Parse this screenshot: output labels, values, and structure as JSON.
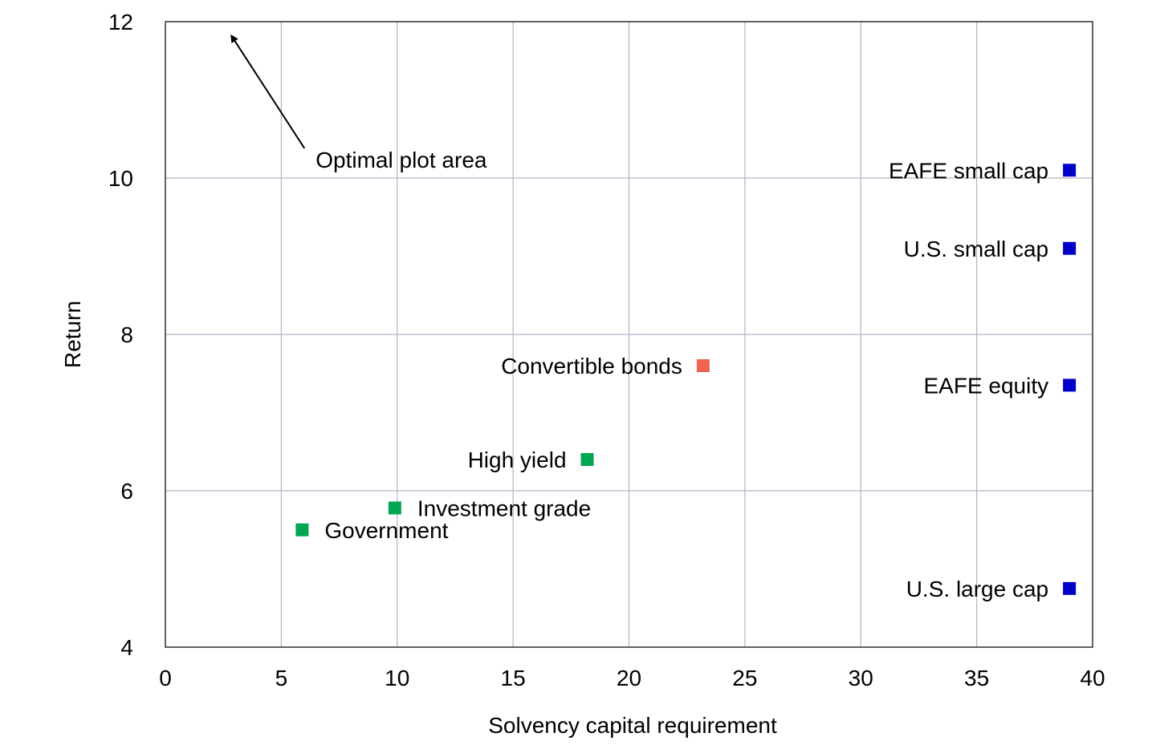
{
  "chart_data": {
    "type": "scatter",
    "title": "",
    "xlabel": "Solvency capital requirement",
    "ylabel": "Return",
    "xlim": [
      0,
      40
    ],
    "ylim": [
      4,
      12
    ],
    "xticks": [
      0,
      5,
      10,
      15,
      20,
      25,
      30,
      35,
      40
    ],
    "yticks": [
      4,
      6,
      8,
      10,
      12
    ],
    "grid": true,
    "points": [
      {
        "label": "EAFE small cap",
        "x": 39,
        "y": 10.1,
        "color": "#0000c8",
        "label_side": "left"
      },
      {
        "label": "U.S. small cap",
        "x": 39,
        "y": 9.1,
        "color": "#0000c8",
        "label_side": "left"
      },
      {
        "label": "EAFE equity",
        "x": 39,
        "y": 7.35,
        "color": "#0000c8",
        "label_side": "left"
      },
      {
        "label": "U.S. large cap",
        "x": 39,
        "y": 4.75,
        "color": "#0000c8",
        "label_side": "left"
      },
      {
        "label": "Convertible bonds",
        "x": 23.2,
        "y": 7.6,
        "color": "#ee6352",
        "label_side": "left"
      },
      {
        "label": "High yield",
        "x": 18.2,
        "y": 6.4,
        "color": "#00a651",
        "label_side": "left"
      },
      {
        "label": "Investment grade",
        "x": 9.9,
        "y": 5.78,
        "color": "#00a651",
        "label_side": "right"
      },
      {
        "label": "Government",
        "x": 5.9,
        "y": 5.5,
        "color": "#00a651",
        "label_side": "right"
      }
    ],
    "annotations": [
      {
        "text": "Optimal plot area",
        "arrow_from": [
          6,
          10.38
        ],
        "arrow_to": [
          2.85,
          11.82
        ]
      }
    ]
  }
}
